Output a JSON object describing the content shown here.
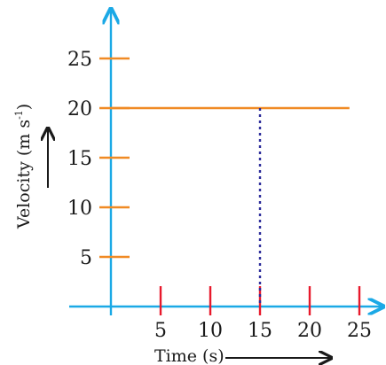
{
  "colors": {
    "axis": "#1ba9e6",
    "y_ticks": "#f08a24",
    "x_ticks": "#e8192c",
    "series": "#f08a24",
    "guide": "#2b2b9a",
    "text": "#1a1a1a",
    "arrow": "#1a1a1a"
  },
  "chart_data": {
    "type": "line",
    "title": "",
    "xlabel": "Time  (s)",
    "ylabel": "Velocity  (m s",
    "ylabel_superscript": "-1",
    "ylabel_close": ")",
    "xlim": [
      0,
      27
    ],
    "ylim": [
      0,
      29
    ],
    "x_ticks": [
      5,
      10,
      15,
      20,
      25
    ],
    "y_ticks": [
      5,
      10,
      15,
      20,
      25
    ],
    "x_tick_labels": [
      "5",
      "10",
      "15",
      "20",
      "25"
    ],
    "y_tick_labels": [
      "5",
      "10",
      "15",
      "20",
      "25"
    ],
    "grid": false,
    "series": [
      {
        "x": [
          0,
          24
        ],
        "y": [
          20,
          20
        ]
      }
    ],
    "guide_line": {
      "x": 15,
      "y_from": 0,
      "y_to": 20,
      "style": "dotted"
    }
  }
}
